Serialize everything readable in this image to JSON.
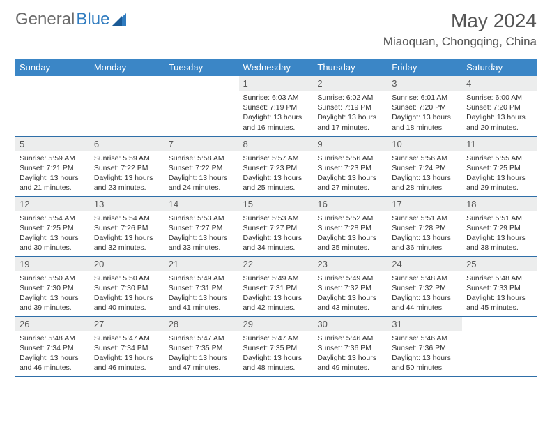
{
  "brand": {
    "general": "General",
    "blue": "Blue"
  },
  "title": "May 2024",
  "location": "Miaoquan, Chongqing, China",
  "colors": {
    "header_bg": "#3b86c6",
    "daynum_bg": "#eceded",
    "row_border": "#2f6fa8",
    "brand_gray": "#6b6b6b",
    "brand_blue": "#2f7bbf"
  },
  "weekdays": [
    "Sunday",
    "Monday",
    "Tuesday",
    "Wednesday",
    "Thursday",
    "Friday",
    "Saturday"
  ],
  "weeks": [
    [
      {
        "empty": true
      },
      {
        "empty": true
      },
      {
        "empty": true
      },
      {
        "n": "1",
        "sr": "6:03 AM",
        "ss": "7:19 PM",
        "dl": "13 hours and 16 minutes."
      },
      {
        "n": "2",
        "sr": "6:02 AM",
        "ss": "7:19 PM",
        "dl": "13 hours and 17 minutes."
      },
      {
        "n": "3",
        "sr": "6:01 AM",
        "ss": "7:20 PM",
        "dl": "13 hours and 18 minutes."
      },
      {
        "n": "4",
        "sr": "6:00 AM",
        "ss": "7:20 PM",
        "dl": "13 hours and 20 minutes."
      }
    ],
    [
      {
        "n": "5",
        "sr": "5:59 AM",
        "ss": "7:21 PM",
        "dl": "13 hours and 21 minutes."
      },
      {
        "n": "6",
        "sr": "5:59 AM",
        "ss": "7:22 PM",
        "dl": "13 hours and 23 minutes."
      },
      {
        "n": "7",
        "sr": "5:58 AM",
        "ss": "7:22 PM",
        "dl": "13 hours and 24 minutes."
      },
      {
        "n": "8",
        "sr": "5:57 AM",
        "ss": "7:23 PM",
        "dl": "13 hours and 25 minutes."
      },
      {
        "n": "9",
        "sr": "5:56 AM",
        "ss": "7:23 PM",
        "dl": "13 hours and 27 minutes."
      },
      {
        "n": "10",
        "sr": "5:56 AM",
        "ss": "7:24 PM",
        "dl": "13 hours and 28 minutes."
      },
      {
        "n": "11",
        "sr": "5:55 AM",
        "ss": "7:25 PM",
        "dl": "13 hours and 29 minutes."
      }
    ],
    [
      {
        "n": "12",
        "sr": "5:54 AM",
        "ss": "7:25 PM",
        "dl": "13 hours and 30 minutes."
      },
      {
        "n": "13",
        "sr": "5:54 AM",
        "ss": "7:26 PM",
        "dl": "13 hours and 32 minutes."
      },
      {
        "n": "14",
        "sr": "5:53 AM",
        "ss": "7:27 PM",
        "dl": "13 hours and 33 minutes."
      },
      {
        "n": "15",
        "sr": "5:53 AM",
        "ss": "7:27 PM",
        "dl": "13 hours and 34 minutes."
      },
      {
        "n": "16",
        "sr": "5:52 AM",
        "ss": "7:28 PM",
        "dl": "13 hours and 35 minutes."
      },
      {
        "n": "17",
        "sr": "5:51 AM",
        "ss": "7:28 PM",
        "dl": "13 hours and 36 minutes."
      },
      {
        "n": "18",
        "sr": "5:51 AM",
        "ss": "7:29 PM",
        "dl": "13 hours and 38 minutes."
      }
    ],
    [
      {
        "n": "19",
        "sr": "5:50 AM",
        "ss": "7:30 PM",
        "dl": "13 hours and 39 minutes."
      },
      {
        "n": "20",
        "sr": "5:50 AM",
        "ss": "7:30 PM",
        "dl": "13 hours and 40 minutes."
      },
      {
        "n": "21",
        "sr": "5:49 AM",
        "ss": "7:31 PM",
        "dl": "13 hours and 41 minutes."
      },
      {
        "n": "22",
        "sr": "5:49 AM",
        "ss": "7:31 PM",
        "dl": "13 hours and 42 minutes."
      },
      {
        "n": "23",
        "sr": "5:49 AM",
        "ss": "7:32 PM",
        "dl": "13 hours and 43 minutes."
      },
      {
        "n": "24",
        "sr": "5:48 AM",
        "ss": "7:32 PM",
        "dl": "13 hours and 44 minutes."
      },
      {
        "n": "25",
        "sr": "5:48 AM",
        "ss": "7:33 PM",
        "dl": "13 hours and 45 minutes."
      }
    ],
    [
      {
        "n": "26",
        "sr": "5:48 AM",
        "ss": "7:34 PM",
        "dl": "13 hours and 46 minutes."
      },
      {
        "n": "27",
        "sr": "5:47 AM",
        "ss": "7:34 PM",
        "dl": "13 hours and 46 minutes."
      },
      {
        "n": "28",
        "sr": "5:47 AM",
        "ss": "7:35 PM",
        "dl": "13 hours and 47 minutes."
      },
      {
        "n": "29",
        "sr": "5:47 AM",
        "ss": "7:35 PM",
        "dl": "13 hours and 48 minutes."
      },
      {
        "n": "30",
        "sr": "5:46 AM",
        "ss": "7:36 PM",
        "dl": "13 hours and 49 minutes."
      },
      {
        "n": "31",
        "sr": "5:46 AM",
        "ss": "7:36 PM",
        "dl": "13 hours and 50 minutes."
      },
      {
        "empty": true
      }
    ]
  ],
  "labels": {
    "sunrise": "Sunrise:",
    "sunset": "Sunset:",
    "daylight": "Daylight:"
  }
}
